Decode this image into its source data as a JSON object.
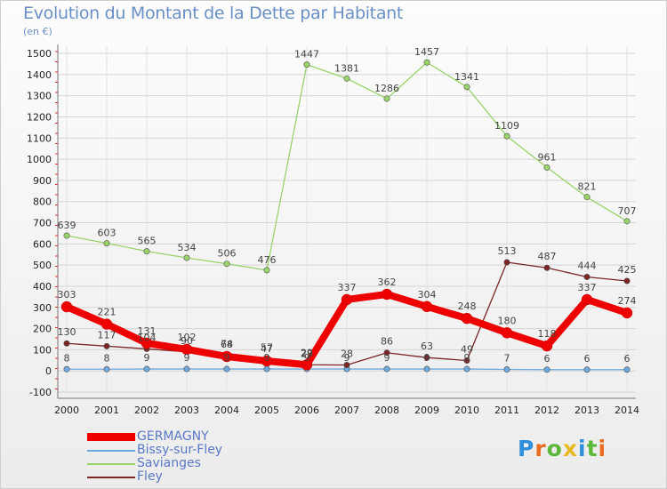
{
  "chart_data": {
    "type": "line",
    "title": "Evolution du Montant de la Dette par Habitant",
    "subtitle": "(en €)",
    "x": [
      "2000",
      "2001",
      "2002",
      "2003",
      "2004",
      "2005",
      "2006",
      "2007",
      "2008",
      "2009",
      "2010",
      "2011",
      "2012",
      "2013",
      "2014"
    ],
    "ylim": [
      -100,
      1500
    ],
    "yticks": [
      -100,
      0,
      100,
      200,
      300,
      400,
      500,
      600,
      700,
      800,
      900,
      1000,
      1100,
      1200,
      1300,
      1400,
      1500
    ],
    "grid": true,
    "legend": "bottom-left",
    "series": [
      {
        "name": "GERMAGNY",
        "color": "#ee0000",
        "values": [
          303,
          221,
          131,
          102,
          68,
          47,
          29,
          337,
          362,
          304,
          248,
          180,
          118,
          337,
          274
        ]
      },
      {
        "name": "Bissy-sur-Fley",
        "color": "#6fa8dc",
        "values": [
          8,
          8,
          9,
          9,
          9,
          9,
          9,
          9,
          9,
          9,
          9,
          7,
          6,
          6,
          6
        ]
      },
      {
        "name": "Savianges",
        "color": "#99d36a",
        "values": [
          639,
          603,
          565,
          534,
          506,
          476,
          1447,
          1381,
          1286,
          1457,
          1341,
          1109,
          961,
          821,
          707
        ]
      },
      {
        "name": "Fley",
        "color": "#7b2525",
        "values": [
          130,
          117,
          104,
          90,
          74,
          57,
          29,
          28,
          86,
          63,
          49,
          513,
          487,
          444,
          425
        ]
      }
    ]
  },
  "brand": {
    "logo_text": "Proxiti"
  }
}
